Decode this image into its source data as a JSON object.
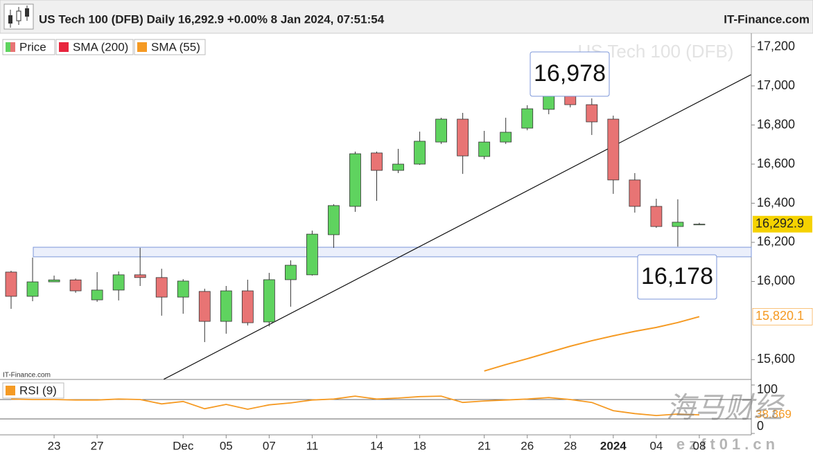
{
  "chart_data": [
    {
      "type": "candlestick",
      "title": "US Tech 100 (DFB) Daily 16,292.9 +0.00% 8 Jan 2024, 07:51:54",
      "source": "IT-Finance.com",
      "watermark": "US Tech 100 (DFB)",
      "categories": [
        null,
        null,
        "23",
        null,
        "27",
        null,
        null,
        null,
        "Dec",
        null,
        "05",
        null,
        "07",
        null,
        "11",
        null,
        null,
        "14",
        null,
        "18",
        null,
        null,
        "21",
        null,
        "26",
        null,
        "28",
        null,
        "2024",
        null,
        "04",
        null,
        "08"
      ],
      "series": [
        {
          "name": "Price",
          "up_color": "#5fd35f",
          "down_color": "#e87474",
          "open": [
            16048,
            15924,
            15998,
            16008,
            15906,
            15956,
            16034,
            16020,
            15920,
            15949,
            15796,
            15952,
            15793,
            16009,
            16034,
            16239,
            16384,
            16657,
            16568,
            16600,
            16713,
            16830,
            16639,
            16713,
            16784,
            16880,
            16947,
            16904,
            16830,
            16519,
            16384,
            16281,
            16292.9
          ],
          "high": [
            16055,
            16122,
            16030,
            16015,
            16048,
            16051,
            16172,
            16065,
            16012,
            15963,
            15977,
            16009,
            16044,
            16108,
            16260,
            16395,
            16664,
            16664,
            16678,
            16766,
            16837,
            16862,
            16770,
            16837,
            16901,
            16968,
            16978,
            16936,
            16848,
            16554,
            16423,
            16420,
            16300
          ],
          "low": [
            15860,
            15899,
            15998,
            15942,
            15896,
            15903,
            15977,
            15825,
            15835,
            15690,
            15733,
            15775,
            15770,
            15871,
            16030,
            16172,
            16356,
            16412,
            16554,
            16596,
            16703,
            16550,
            16625,
            16703,
            16773,
            16855,
            16890,
            16749,
            16448,
            16352,
            16274,
            16178,
            16290
          ],
          "close": [
            15924,
            15998,
            16008,
            15952,
            15956,
            16034,
            16020,
            15920,
            16002,
            15796,
            15952,
            15789,
            16009,
            16083,
            16242,
            16388,
            16653,
            16568,
            16600,
            16717,
            16830,
            16642,
            16713,
            16763,
            16883,
            16950,
            16904,
            16816,
            16519,
            16384,
            16281,
            16303,
            16292.9
          ]
        },
        {
          "name": "SMA (200)",
          "color": "#e8253d",
          "values": [
            null,
            null,
            null,
            null,
            null,
            null,
            null,
            null,
            null,
            null,
            null,
            null,
            null,
            null,
            null,
            null,
            null,
            null,
            null,
            null,
            null,
            null,
            null,
            null,
            null,
            null,
            null,
            null,
            null,
            null,
            null,
            null,
            null
          ]
        },
        {
          "name": "SMA (55)",
          "color": "#f59a23",
          "values": [
            null,
            null,
            null,
            null,
            null,
            null,
            null,
            null,
            null,
            null,
            null,
            null,
            null,
            null,
            null,
            null,
            null,
            null,
            null,
            null,
            null,
            null,
            15542,
            15575,
            15605,
            15637,
            15669,
            15697,
            15722,
            15745,
            15765,
            15790,
            15820.1
          ],
          "value_label": {
            "value": 15820.1,
            "label": "15,820.1"
          }
        }
      ],
      "last_price": {
        "value": 16292.9,
        "label": "16,292.9"
      },
      "annotations": [
        {
          "value": 16978,
          "label": "16,978"
        },
        {
          "value": 16178,
          "label": "16,178"
        }
      ],
      "support_zone": [
        16126,
        16175
      ],
      "trendline": {
        "x": [
          7.1,
          34.4
        ],
        "y": [
          15500,
          17057
        ]
      },
      "ylim": [
        15499,
        17255
      ],
      "yticks": [
        {
          "value": 15600,
          "label": "15,600"
        },
        {
          "value": 16000,
          "label": "16,000"
        },
        {
          "value": 16200,
          "label": "16,200"
        },
        {
          "value": 16400,
          "label": "16,400"
        },
        {
          "value": 16600,
          "label": "16,600"
        },
        {
          "value": 16800,
          "label": "16,800"
        },
        {
          "value": 17000,
          "label": "17,000"
        },
        {
          "value": 17200,
          "label": "17,200"
        }
      ]
    },
    {
      "type": "line",
      "series": [
        {
          "name": "RSI (9)",
          "color": "#f59a23",
          "values": [
            71,
            70,
            70,
            69,
            69,
            71,
            70,
            61,
            66,
            51,
            60,
            50,
            59,
            63,
            69,
            71,
            77,
            71,
            73,
            76,
            77,
            64,
            67,
            69,
            71,
            74,
            70,
            64,
            47,
            41,
            37,
            40,
            38.369
          ]
        }
      ],
      "levels": [
        30,
        70
      ],
      "ylim": [
        0,
        100
      ],
      "yticks": [
        0,
        100
      ],
      "last_value": 38.369,
      "watermark": [
        "海马财经",
        "ezft01.cn"
      ]
    }
  ]
}
